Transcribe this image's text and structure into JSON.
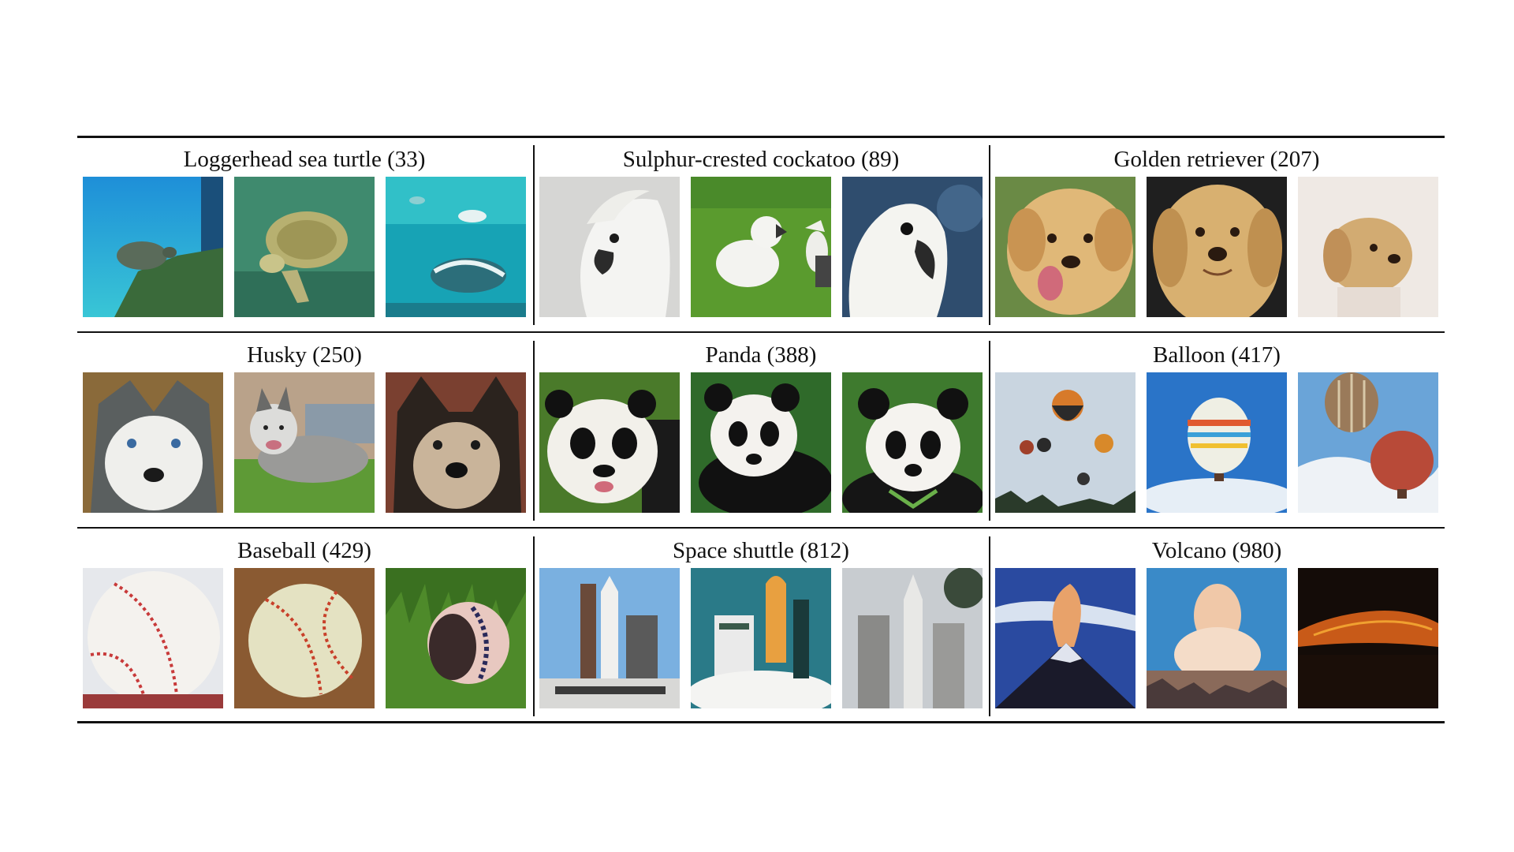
{
  "figure": {
    "cells": [
      {
        "title": "Loggerhead sea turtle (33)"
      },
      {
        "title": "Sulphur-crested cockatoo (89)"
      },
      {
        "title": "Golden retriever (207)"
      },
      {
        "title": "Husky (250)"
      },
      {
        "title": "Panda (388)"
      },
      {
        "title": "Balloon (417)"
      },
      {
        "title": "Baseball (429)"
      },
      {
        "title": "Space shuttle (812)"
      },
      {
        "title": "Volcano (980)"
      }
    ]
  }
}
